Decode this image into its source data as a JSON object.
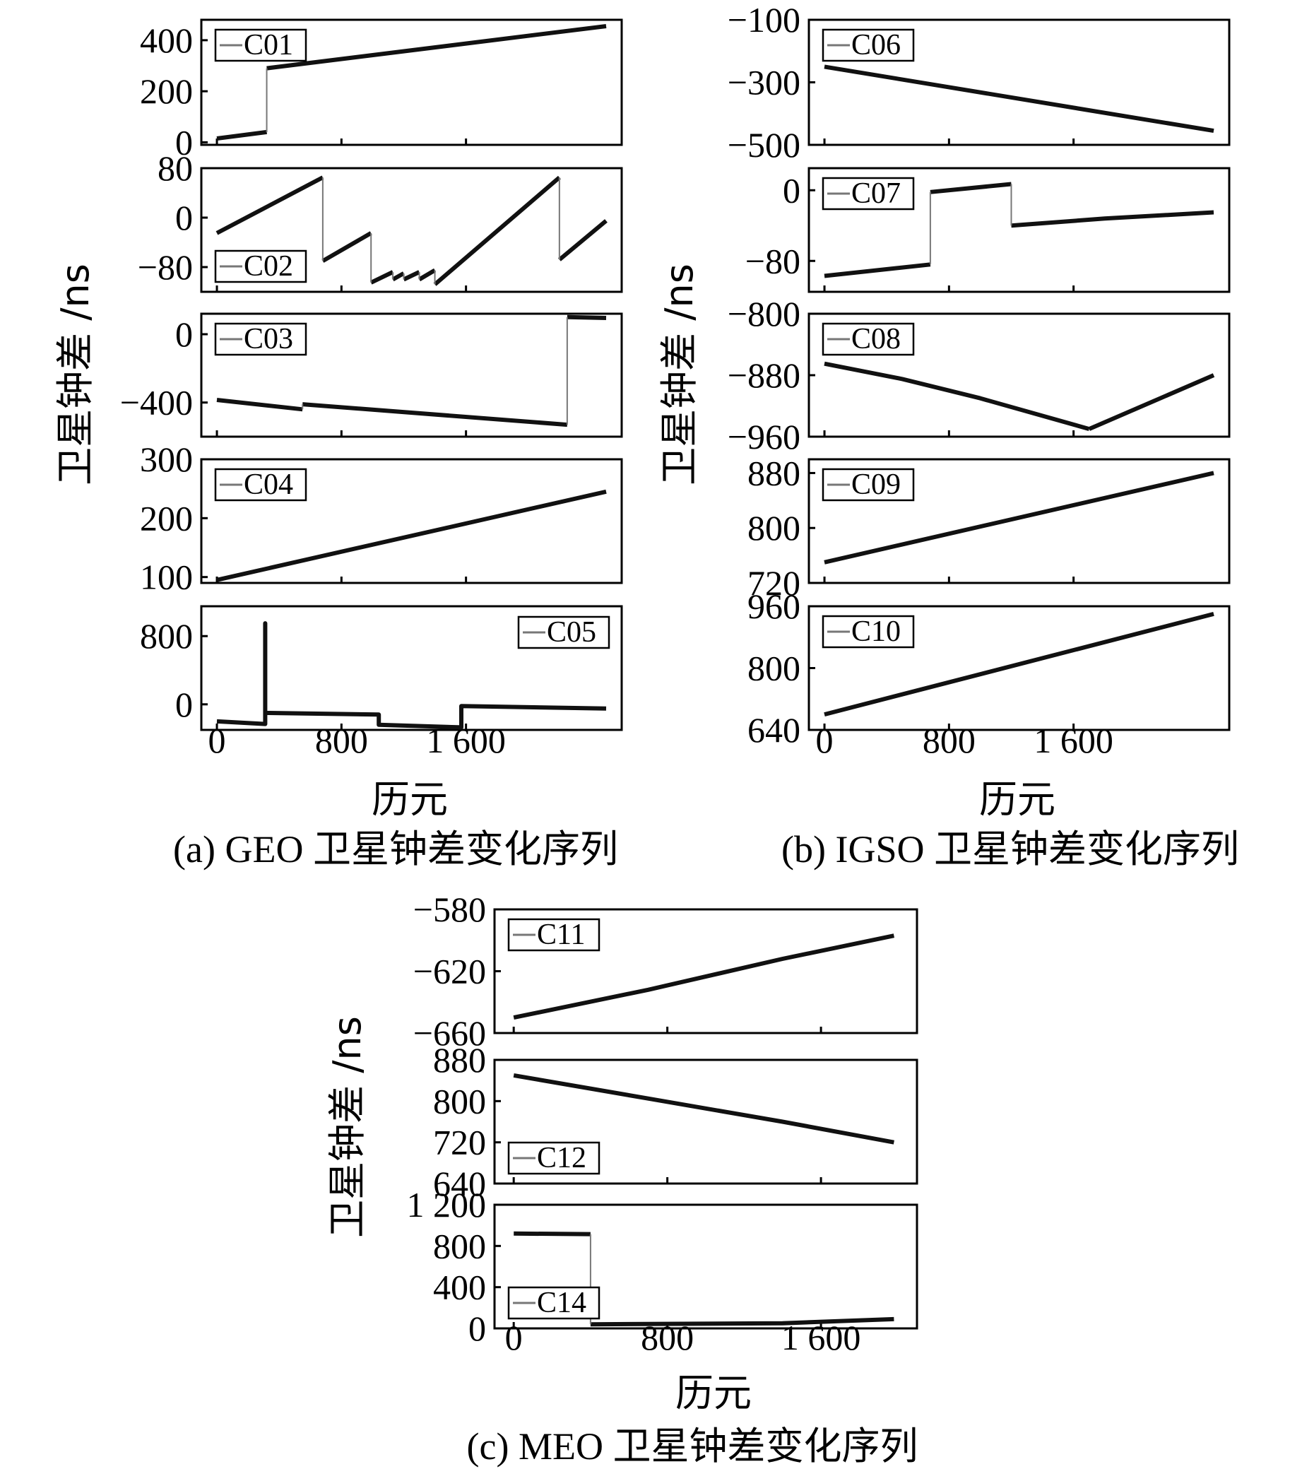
{
  "chart_data": [
    {
      "type": "line",
      "group": "a",
      "caption": "(a) GEO 卫星钟差变化序列",
      "xlabel": "历元",
      "ylabel": "卫星钟差 /ns",
      "xlim": [
        -100,
        2600
      ],
      "xticks": [
        "0",
        "800",
        "1 600"
      ],
      "xtick_values": [
        0,
        800,
        1600
      ],
      "panels": [
        {
          "name": "C01",
          "ylim": [
            -10,
            480
          ],
          "yticks": [
            "0",
            "200",
            "400"
          ],
          "ytick_values": [
            0,
            200,
            400
          ],
          "legend": "top-left",
          "segments": [
            [
              [
                0,
                15
              ],
              [
                320,
                40
              ]
            ],
            [
              [
                320,
                290
              ],
              [
                2500,
                455
              ]
            ]
          ]
        },
        {
          "name": "C02",
          "ylim": [
            -120,
            80
          ],
          "yticks": [
            "−80",
            "0",
            "80"
          ],
          "ytick_values": [
            -80,
            0,
            80
          ],
          "legend": "bottom-left",
          "segments": [
            [
              [
                0,
                -25
              ],
              [
                680,
                65
              ]
            ],
            [
              [
                680,
                -70
              ],
              [
                990,
                -25
              ]
            ],
            [
              [
                990,
                -105
              ],
              [
                1130,
                -88
              ]
            ],
            [
              [
                1130,
                -100
              ],
              [
                1200,
                -90
              ]
            ],
            [
              [
                1200,
                -100
              ],
              [
                1300,
                -88
              ]
            ],
            [
              [
                1300,
                -100
              ],
              [
                1400,
                -85
              ]
            ],
            [
              [
                1400,
                -108
              ],
              [
                2200,
                65
              ]
            ],
            [
              [
                2200,
                -68
              ],
              [
                2500,
                -5
              ]
            ]
          ]
        },
        {
          "name": "C03",
          "ylim": [
            -600,
            120
          ],
          "yticks": [
            "−400",
            "0"
          ],
          "ytick_values": [
            -400,
            0
          ],
          "legend": "top-left",
          "segments": [
            [
              [
                0,
                -385
              ],
              [
                550,
                -440
              ]
            ],
            [
              [
                550,
                -410
              ],
              [
                2250,
                -530
              ]
            ],
            [
              [
                2250,
                100
              ],
              [
                2500,
                95
              ]
            ]
          ]
        },
        {
          "name": "C04",
          "ylim": [
            90,
            300
          ],
          "yticks": [
            "100",
            "200",
            "300"
          ],
          "ytick_values": [
            100,
            200,
            300
          ],
          "legend": "top-left",
          "segments": [
            [
              [
                0,
                95
              ],
              [
                2500,
                245
              ]
            ]
          ]
        },
        {
          "name": "C05",
          "ylim": [
            -300,
            1150
          ],
          "yticks": [
            "0",
            "800"
          ],
          "ytick_values": [
            0,
            800
          ],
          "legend": "top-right",
          "segments": [
            [
              [
                0,
                -200
              ],
              [
                310,
                -230
              ],
              [
                310,
                950
              ],
              [
                310,
                -100
              ],
              [
                1040,
                -120
              ],
              [
                1040,
                -240
              ],
              [
                1570,
                -270
              ],
              [
                1570,
                -20
              ],
              [
                2500,
                -50
              ]
            ]
          ]
        }
      ]
    },
    {
      "type": "line",
      "group": "b",
      "caption": "(b) IGSO 卫星钟差变化序列",
      "xlabel": "历元",
      "ylabel": "卫星钟差 /ns",
      "xlim": [
        -100,
        2600
      ],
      "xticks": [
        "0",
        "800",
        "1 600"
      ],
      "xtick_values": [
        0,
        800,
        1600
      ],
      "panels": [
        {
          "name": "C06",
          "ylim": [
            -500,
            -100
          ],
          "yticks": [
            "−100",
            "−300",
            "−500"
          ],
          "ytick_values": [
            -100,
            -300,
            -500
          ],
          "legend": "top-left",
          "segments": [
            [
              [
                0,
                -250
              ],
              [
                2500,
                -455
              ]
            ]
          ]
        },
        {
          "name": "C07",
          "ylim": [
            -115,
            25
          ],
          "yticks": [
            "0",
            "−80"
          ],
          "ytick_values": [
            0,
            -80
          ],
          "legend": "top-left",
          "segments": [
            [
              [
                0,
                -97
              ],
              [
                680,
                -84
              ]
            ],
            [
              [
                680,
                -2
              ],
              [
                1200,
                7
              ]
            ],
            [
              [
                1200,
                -40
              ],
              [
                1800,
                -32
              ],
              [
                2500,
                -25
              ]
            ]
          ]
        },
        {
          "name": "C08",
          "ylim": [
            -960,
            -800
          ],
          "yticks": [
            "−800",
            "−880",
            "−960"
          ],
          "ytick_values": [
            -800,
            -880,
            -960
          ],
          "legend": "top-left",
          "segments": [
            [
              [
                0,
                -865
              ],
              [
                500,
                -885
              ],
              [
                1000,
                -910
              ],
              [
                1700,
                -950
              ]
            ],
            [
              [
                1700,
                -950
              ],
              [
                2500,
                -880
              ]
            ]
          ]
        },
        {
          "name": "C09",
          "ylim": [
            720,
            900
          ],
          "yticks": [
            "880",
            "800",
            "720"
          ],
          "ytick_values": [
            880,
            800,
            720
          ],
          "legend": "top-left",
          "segments": [
            [
              [
                0,
                750
              ],
              [
                2500,
                880
              ]
            ]
          ]
        },
        {
          "name": "C10",
          "ylim": [
            640,
            960
          ],
          "yticks": [
            "960",
            "800",
            "640"
          ],
          "ytick_values": [
            960,
            800,
            640
          ],
          "legend": "top-left",
          "segments": [
            [
              [
                0,
                680
              ],
              [
                2500,
                940
              ]
            ]
          ]
        }
      ]
    },
    {
      "type": "line",
      "group": "c",
      "caption": "(c) MEO 卫星钟差变化序列",
      "xlabel": "历元",
      "ylabel": "卫星钟差 /ns",
      "xlim": [
        -100,
        2100
      ],
      "xticks": [
        "0",
        "800",
        "1 600"
      ],
      "xtick_values": [
        0,
        800,
        1600
      ],
      "panels": [
        {
          "name": "C11",
          "ylim": [
            -660,
            -580
          ],
          "yticks": [
            "−580",
            "−620",
            "−660"
          ],
          "ytick_values": [
            -580,
            -620,
            -660
          ],
          "legend": "top-left",
          "segments": [
            [
              [
                0,
                -650
              ],
              [
                700,
                -632
              ],
              [
                1400,
                -612
              ],
              [
                1980,
                -597
              ]
            ]
          ]
        },
        {
          "name": "C12",
          "ylim": [
            640,
            880
          ],
          "yticks": [
            "880",
            "800",
            "720",
            "640"
          ],
          "ytick_values": [
            880,
            800,
            720,
            640
          ],
          "legend": "bottom-left",
          "segments": [
            [
              [
                0,
                850
              ],
              [
                700,
                805
              ],
              [
                1400,
                760
              ],
              [
                1980,
                720
              ]
            ]
          ]
        },
        {
          "name": "C14",
          "ylim": [
            0,
            1200
          ],
          "yticks": [
            "1 200",
            "800",
            "400",
            "0"
          ],
          "ytick_values": [
            1200,
            800,
            400,
            0
          ],
          "legend": "bottom-left",
          "segments": [
            [
              [
                0,
                920
              ],
              [
                400,
                915
              ]
            ],
            [
              [
                400,
                40
              ],
              [
                1400,
                50
              ],
              [
                1980,
                90
              ]
            ]
          ]
        }
      ]
    }
  ]
}
